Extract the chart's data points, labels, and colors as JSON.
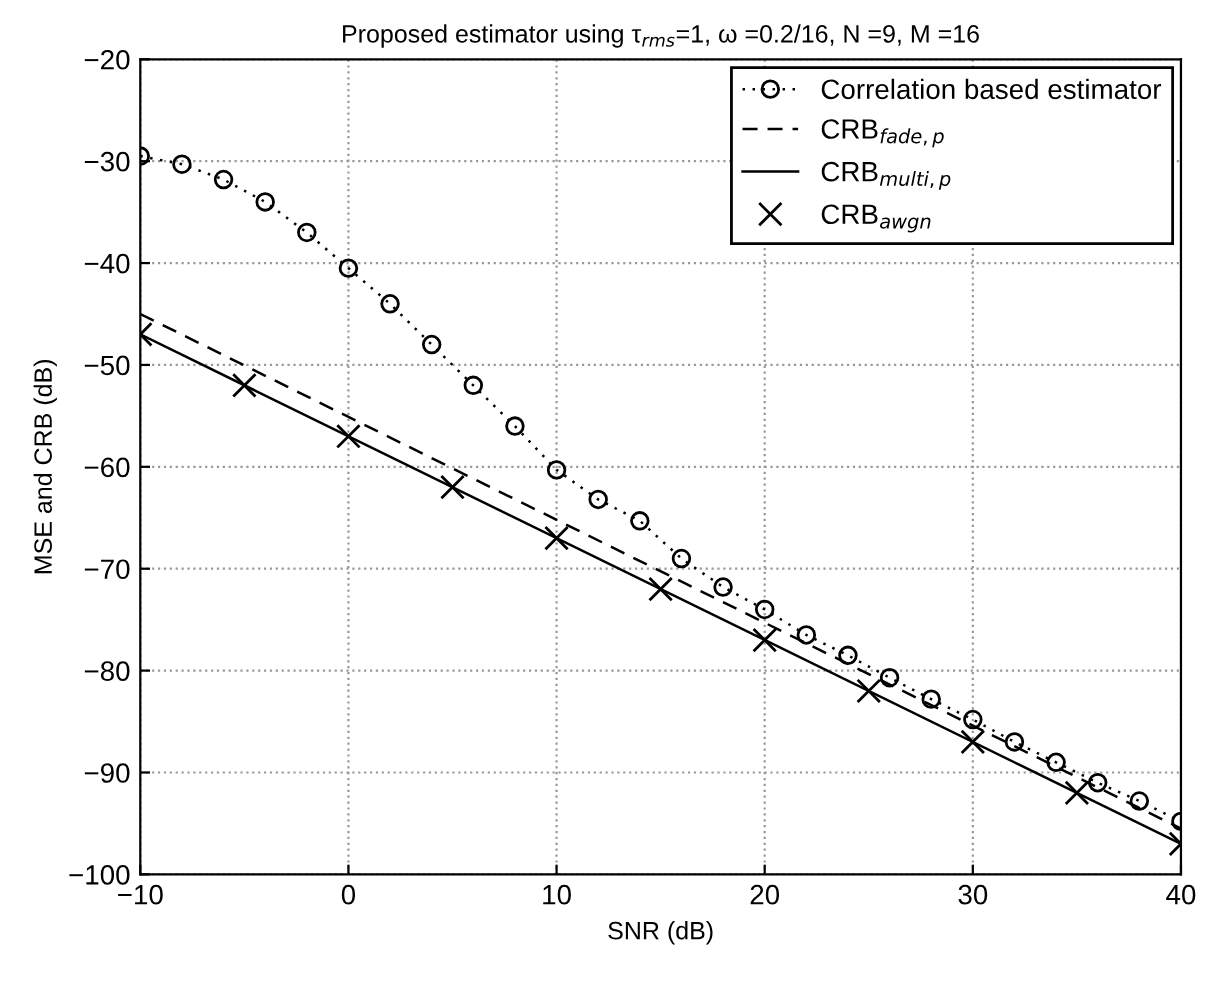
{
  "chart_data": {
    "type": "line",
    "title": "Proposed estimator using τ$_{rms}$=1, ω =0.2/16, N =9, M =16",
    "xlabel": "SNR (dB)",
    "ylabel": "MSE and CRB (dB)",
    "xlim": [
      -10,
      40
    ],
    "xticks": [
      -10,
      0,
      10,
      20,
      30,
      40
    ],
    "ylim": [
      -100,
      -20
    ],
    "yticks": [
      -100,
      -90,
      -80,
      -70,
      -60,
      -50,
      -40,
      -30,
      -20
    ],
    "grid": true,
    "legend": "top right",
    "series": [
      {
        "name": "Correlation based estimator",
        "color": "#000000",
        "marker": "circle",
        "line_style": "dotted",
        "x": [
          -10,
          -8,
          -6,
          -4,
          -2,
          0,
          2,
          4,
          6,
          8,
          10,
          12,
          14,
          16,
          18,
          20,
          22,
          24,
          26,
          28,
          30,
          32,
          34,
          36,
          38,
          40
        ],
        "values": [
          -29.5,
          -30.3,
          -31.8,
          -34,
          -37,
          -40.5,
          -44,
          -48,
          -52,
          -56,
          -60.3,
          -63.2,
          -65.3,
          -69,
          -71.8,
          -74,
          -76.5,
          -78.5,
          -80.7,
          -82.8,
          -84.8,
          -87,
          -89,
          -91,
          -92.8,
          -94.8
        ]
      },
      {
        "name": "CRB$_{fade,p}$",
        "color": "#000000",
        "marker": "none",
        "line_style": "dashed",
        "x": [
          -10,
          40
        ],
        "values": [
          -45,
          -95.5
        ]
      },
      {
        "name": "CRB$_{multi,p}$",
        "color": "#000000",
        "marker": "none",
        "line_style": "solid",
        "x": [
          -10,
          40
        ],
        "values": [
          -47,
          -97
        ]
      },
      {
        "name": "CRB$_{awgn}$",
        "type": "scatter",
        "color": "#000000",
        "marker": "cross",
        "x": [
          -10,
          -5,
          0,
          5,
          10,
          15,
          20,
          25,
          30,
          35,
          40
        ],
        "values": [
          -47,
          -52,
          -57,
          -62,
          -67,
          -72,
          -77,
          -82,
          -87,
          -92,
          -97
        ]
      }
    ]
  }
}
